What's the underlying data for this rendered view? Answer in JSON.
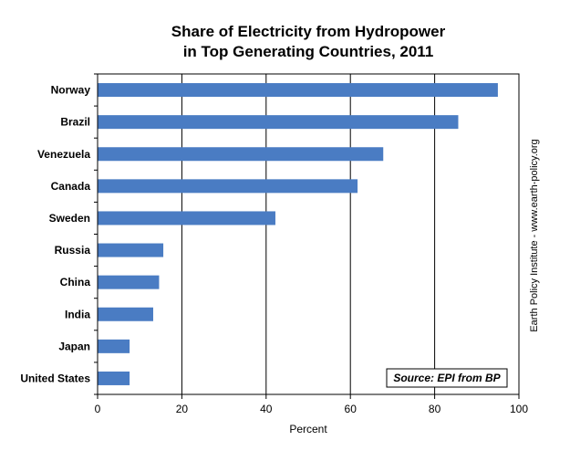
{
  "chart_data": {
    "type": "bar",
    "orientation": "horizontal",
    "title_lines": [
      "Share of Electricity from Hydropower",
      "in Top Generating Countries, 2011"
    ],
    "categories": [
      "Norway",
      "Brazil",
      "Venezuela",
      "Canada",
      "Sweden",
      "Russia",
      "China",
      "India",
      "Japan",
      "United States"
    ],
    "values": [
      95,
      85.6,
      67.8,
      61.7,
      42.2,
      15.6,
      14.6,
      13.2,
      7.6,
      7.6
    ],
    "xlabel": "Percent",
    "xlim": [
      0,
      100
    ],
    "xticks": [
      0,
      20,
      40,
      60,
      80,
      100
    ],
    "grid": "vertical",
    "bar_color": "#4a7cc3",
    "side_note": "Earth Policy Institute - www.earth-policy.org",
    "source": "Source: EPI from BP"
  }
}
